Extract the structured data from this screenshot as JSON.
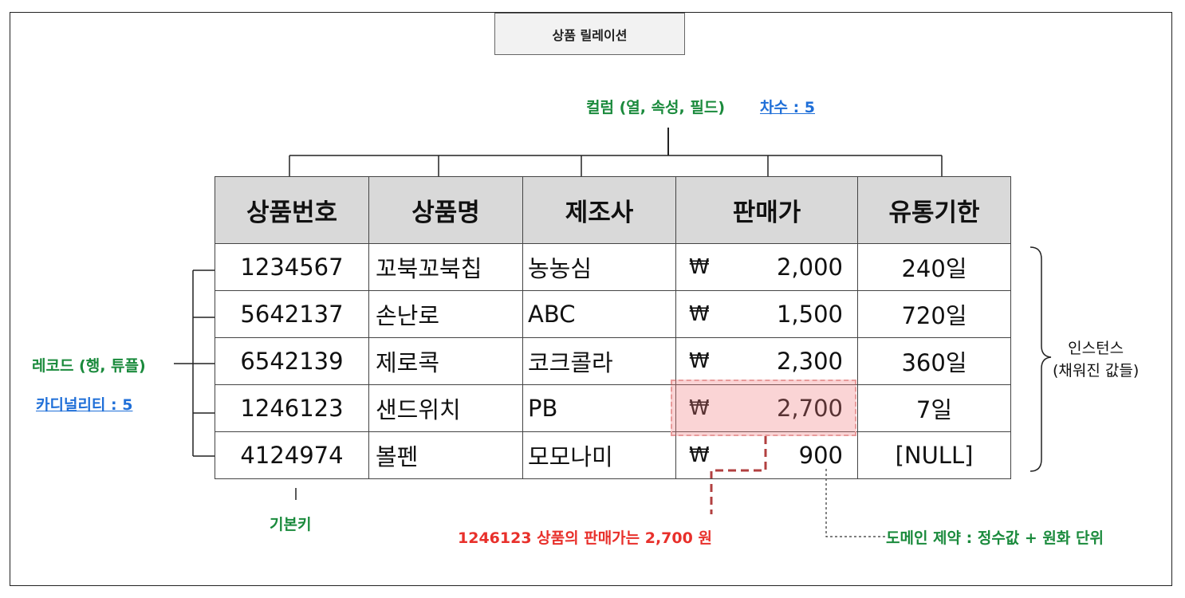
{
  "title": "상품 릴레이션",
  "labels": {
    "column": "컬럼 (열, 속성, 필드)",
    "degree": "차수 : 5",
    "record": "레코드 (행, 튜플)",
    "cardinality": "카디널리티 : 5",
    "primary_key": "기본키",
    "instance_line1": "인스턴스",
    "instance_line2": "(채워진 값들)",
    "price_note": "1246123 상품의 판매가는 2,700 원",
    "domain_note": "도메인 제약 : 정수값 + 원화 단위"
  },
  "table": {
    "headers": [
      "상품번호",
      "상품명",
      "제조사",
      "판매가",
      "유통기한"
    ],
    "currency_symbol": "₩",
    "rows": [
      {
        "id": "1234567",
        "name": "꼬북꼬북칩",
        "maker": "농농심",
        "price": "2,000",
        "expiry": "240일"
      },
      {
        "id": "5642137",
        "name": "손난로",
        "maker": "ABC",
        "price": "1,500",
        "expiry": "720일"
      },
      {
        "id": "6542139",
        "name": "제로콕",
        "maker": "코크콜라",
        "price": "2,300",
        "expiry": "360일"
      },
      {
        "id": "1246123",
        "name": "샌드위치",
        "maker": "PB",
        "price": "2,700",
        "expiry": "7일"
      },
      {
        "id": "4124974",
        "name": "볼펜",
        "maker": "모모나미",
        "price": "900",
        "expiry": "[NULL]"
      }
    ]
  },
  "colors": {
    "green": "#1a8a3c",
    "red": "#e8302b",
    "link": "#1f6fd8",
    "header_bg": "#d9d9d9",
    "highlight": "#f0787d"
  }
}
